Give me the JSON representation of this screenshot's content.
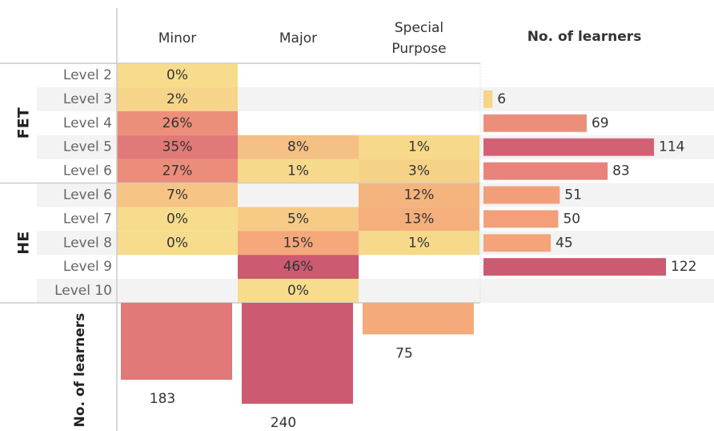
{
  "chart_data": {
    "type": "heatmap",
    "columns": [
      "Minor",
      "Major",
      "Special Purpose"
    ],
    "groups": [
      {
        "name": "FET",
        "rows": [
          "Level 2",
          "Level 3",
          "Level 4",
          "Level 5",
          "Level 6"
        ]
      },
      {
        "name": "HE",
        "rows": [
          "Level 6",
          "Level 7",
          "Level 8",
          "Level 9",
          "Level 10"
        ]
      }
    ],
    "values": [
      [
        0,
        null,
        null
      ],
      [
        2,
        null,
        null
      ],
      [
        26,
        null,
        null
      ],
      [
        35,
        8,
        1
      ],
      [
        27,
        1,
        3
      ],
      [
        7,
        null,
        12
      ],
      [
        0,
        5,
        13
      ],
      [
        0,
        15,
        1
      ],
      [
        null,
        46,
        null
      ],
      [
        null,
        0,
        null
      ]
    ],
    "value_labels": [
      [
        "0%",
        null,
        null
      ],
      [
        "2%",
        null,
        null
      ],
      [
        "26%",
        null,
        null
      ],
      [
        "35%",
        "8%",
        "1%"
      ],
      [
        "27%",
        "1%",
        "3%"
      ],
      [
        "7%",
        null,
        "12%"
      ],
      [
        "0%",
        "5%",
        "13%"
      ],
      [
        "0%",
        "15%",
        "1%"
      ],
      [
        null,
        "46%",
        null
      ],
      [
        null,
        "0%",
        null
      ]
    ],
    "row_total_title": "No. of learners",
    "row_totals": [
      null,
      6,
      69,
      114,
      83,
      51,
      50,
      45,
      122,
      null
    ],
    "column_total_title": "No. of learners",
    "column_totals": [
      183,
      240,
      75
    ],
    "color_scale": [
      "#f6dc8c",
      "#f5a77a",
      "#e8857a",
      "#cc5a71"
    ]
  }
}
